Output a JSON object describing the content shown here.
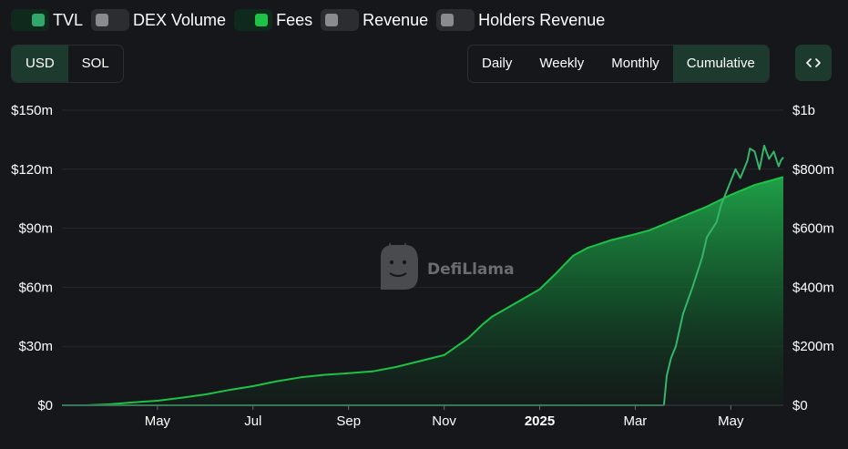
{
  "legend": [
    {
      "label": "TVL",
      "on": true,
      "knob_color": "#2fa86a"
    },
    {
      "label": "DEX Volume",
      "on": false,
      "knob_color": "#8a8b8e"
    },
    {
      "label": "Fees",
      "on": true,
      "knob_color": "#1ec246"
    },
    {
      "label": "Revenue",
      "on": false,
      "knob_color": "#8a8b8e"
    },
    {
      "label": "Holders Revenue",
      "on": false,
      "knob_color": "#8a8b8e"
    }
  ],
  "currency": {
    "options": [
      "USD",
      "SOL"
    ],
    "selected": "USD"
  },
  "period": {
    "options": [
      "Daily",
      "Weekly",
      "Monthly",
      "Cumulative"
    ],
    "selected": "Cumulative"
  },
  "embed_icon": "code-brackets-icon",
  "watermark": {
    "text": "DefiLlama",
    "icon": "llama-logo-icon"
  },
  "colors": {
    "fees": "#1ec246",
    "tvl": "#36b46b",
    "background": "#16171a",
    "active": "#1c3a2d"
  },
  "chart_data": {
    "type": "area",
    "x_unit": "months since 2024-03-01",
    "x_ticks": [
      {
        "x": 2,
        "label": "May",
        "bold": false
      },
      {
        "x": 4,
        "label": "Jul",
        "bold": false
      },
      {
        "x": 6,
        "label": "Sep",
        "bold": false
      },
      {
        "x": 8,
        "label": "Nov",
        "bold": false
      },
      {
        "x": 10,
        "label": "2025",
        "bold": true
      },
      {
        "x": 12,
        "label": "Mar",
        "bold": false
      },
      {
        "x": 14,
        "label": "May",
        "bold": false
      }
    ],
    "xlim": [
      0,
      15.1
    ],
    "y_left": {
      "ticks": [
        "$0",
        "$30m",
        "$60m",
        "$90m",
        "$120m",
        "$150m"
      ],
      "values": [
        0,
        30,
        60,
        90,
        120,
        150
      ],
      "ylim": [
        0,
        150
      ],
      "unit": "$m"
    },
    "y_right": {
      "ticks": [
        "$0",
        "$200m",
        "$400m",
        "$600m",
        "$800m",
        "$1b"
      ],
      "values": [
        0,
        200,
        400,
        600,
        800,
        1000
      ],
      "ylim": [
        0,
        1000
      ],
      "unit": "$m"
    },
    "series": [
      {
        "name": "Fees",
        "axis": "left",
        "style": "area",
        "x": [
          0,
          0.5,
          1,
          1.5,
          2,
          2.5,
          3,
          3.5,
          4,
          4.5,
          5,
          5.5,
          6,
          6.5,
          7,
          7.5,
          8,
          8.5,
          8.8,
          9,
          9.5,
          10,
          10.3,
          10.7,
          11,
          11.5,
          12,
          12.3,
          12.6,
          13,
          13.5,
          14,
          14.5,
          15.1
        ],
        "values": [
          0,
          0,
          0.5,
          1.5,
          2.3,
          3.8,
          5.5,
          7.8,
          9.7,
          12.2,
          14.2,
          15.5,
          16.3,
          17.2,
          19.5,
          22.5,
          25.5,
          34,
          41,
          45,
          52,
          59,
          66,
          76,
          80,
          84,
          87,
          89,
          92,
          96,
          101,
          107,
          112,
          116
        ]
      },
      {
        "name": "TVL",
        "axis": "right",
        "style": "line",
        "x": [
          0,
          3,
          6,
          9,
          12,
          12.6,
          12.66,
          12.75,
          12.85,
          13,
          13.2,
          13.4,
          13.5,
          13.7,
          13.8,
          13.95,
          14.1,
          14.2,
          14.35,
          14.4,
          14.5,
          14.6,
          14.7,
          14.8,
          14.9,
          15.0,
          15.05,
          15.1
        ],
        "values": [
          0,
          0,
          0,
          0,
          0,
          0,
          100,
          160,
          200,
          310,
          400,
          500,
          570,
          620,
          680,
          740,
          800,
          770,
          830,
          870,
          860,
          800,
          880,
          835,
          860,
          810,
          830,
          840
        ]
      }
    ]
  }
}
